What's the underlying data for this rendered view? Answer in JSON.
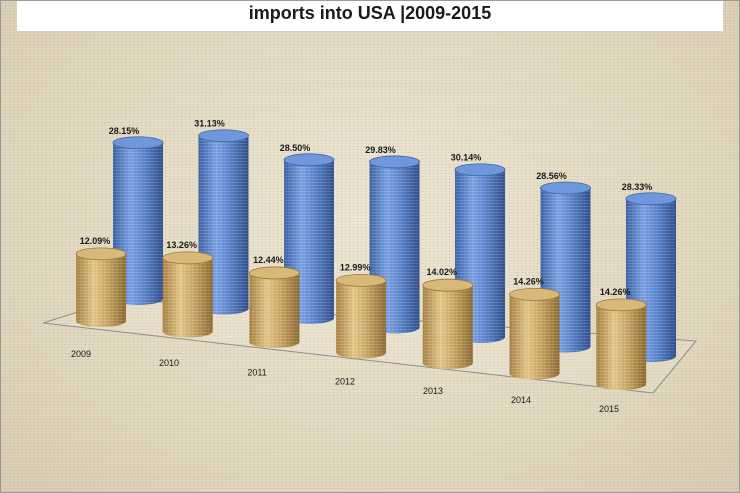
{
  "chart_data": {
    "type": "bar",
    "title": "imports into USA |2009-2015",
    "categories": [
      "2009",
      "2010",
      "2011",
      "2012",
      "2013",
      "2014",
      "2015"
    ],
    "series": [
      {
        "values": [
          12.09,
          13.26,
          12.44,
          12.99,
          14.02,
          14.26,
          14.26
        ],
        "labels": [
          "12.09%",
          "13.26%",
          "12.44%",
          "12.99%",
          "14.02%",
          "14.26%",
          "14.26%"
        ],
        "color": "#c9a865"
      },
      {
        "values": [
          28.15,
          31.13,
          28.5,
          29.83,
          30.14,
          28.56,
          28.33
        ],
        "labels": [
          "28.15%",
          "31.13%",
          "28.50%",
          "29.83%",
          "30.14%",
          "28.56%",
          "28.33%"
        ],
        "color": "#5b86cf"
      }
    ],
    "xlabel": "",
    "ylabel": "",
    "grid": false,
    "legend": "none"
  }
}
